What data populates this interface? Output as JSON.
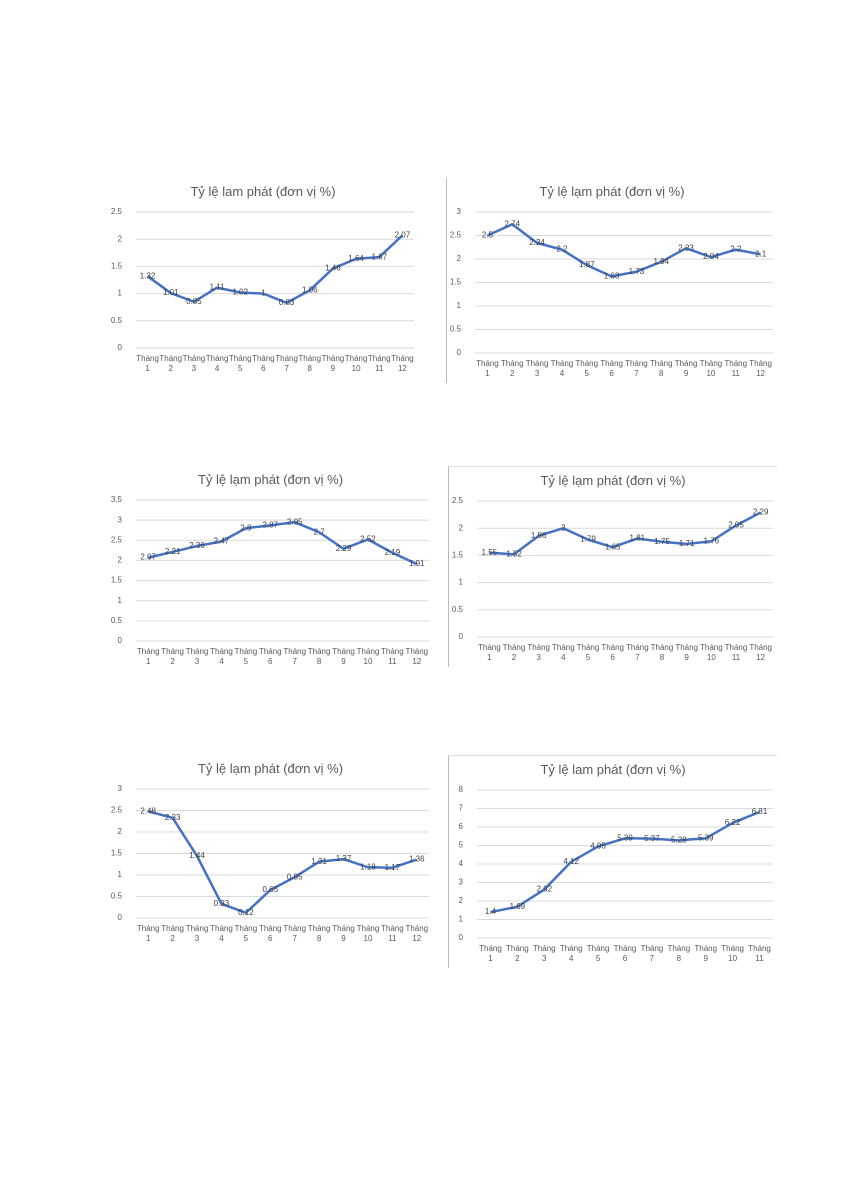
{
  "chart_data": [
    {
      "type": "line",
      "title": "Tỷ lệ lam phát (đơn vị %)",
      "categories": [
        "Tháng 1",
        "Tháng 2",
        "Tháng 3",
        "Tháng 4",
        "Tháng 5",
        "Tháng 6",
        "Tháng 7",
        "Tháng 8",
        "Tháng 9",
        "Tháng 10",
        "Tháng 11",
        "Tháng 12"
      ],
      "series": [
        {
          "color": "#4472c4",
          "values": [
            1.32,
            1.01,
            0.85,
            1.11,
            1.02,
            1,
            0.83,
            1.06,
            1.46,
            1.64,
            1.67,
            2.07
          ]
        }
      ],
      "ylim": [
        0,
        2.5
      ],
      "yticks": [
        0,
        0.5,
        1,
        1.5,
        2,
        2.5
      ],
      "grid": true
    },
    {
      "type": "line",
      "title": "Tỷ lệ lạm phát (đơn vị %)",
      "categories": [
        "Tháng 1",
        "Tháng 2",
        "Tháng 3",
        "Tháng 4",
        "Tháng 5",
        "Tháng 6",
        "Tháng 7",
        "Tháng 8",
        "Tháng 9",
        "Tháng 10",
        "Tháng 11",
        "Tháng 12"
      ],
      "series": [
        {
          "color": "#4472c4",
          "values": [
            2.5,
            2.74,
            2.34,
            2.2,
            1.87,
            1.63,
            1.73,
            1.94,
            2.23,
            2.04,
            2.2,
            2.1
          ]
        }
      ],
      "ylim": [
        0,
        3
      ],
      "yticks": [
        0,
        0.5,
        1,
        1.5,
        2,
        2.5,
        3
      ],
      "grid": true
    },
    {
      "type": "line",
      "title": "Tỷ lệ lạm phát (đơn vị %)",
      "categories": [
        "Tháng 1",
        "Tháng 2",
        "Tháng 3",
        "Tháng 4",
        "Tháng 5",
        "Tháng 6",
        "Tháng 7",
        "Tháng 8",
        "Tháng 9",
        "Tháng 10",
        "Tháng 11",
        "Tháng 12"
      ],
      "series": [
        {
          "color": "#4472c4",
          "values": [
            2.07,
            2.21,
            2.36,
            2.47,
            2.8,
            2.87,
            2.95,
            2.7,
            2.29,
            2.52,
            2.19,
            1.91
          ]
        }
      ],
      "ylim": [
        0,
        3.5
      ],
      "yticks": [
        0,
        0.5,
        1,
        1.5,
        2,
        2.5,
        3,
        3.5
      ],
      "grid": true
    },
    {
      "type": "line",
      "title": "Tỷ lệ lạm phát (đơn vị %)",
      "categories": [
        "Tháng 1",
        "Tháng 2",
        "Tháng 3",
        "Tháng 4",
        "Tháng 5",
        "Tháng 6",
        "Tháng 7",
        "Tháng 8",
        "Tháng 9",
        "Tháng 10",
        "Tháng 11",
        "Tháng 12"
      ],
      "series": [
        {
          "color": "#4472c4",
          "values": [
            1.55,
            1.52,
            1.86,
            2,
            1.79,
            1.65,
            1.81,
            1.75,
            1.71,
            1.76,
            2.05,
            2.29
          ]
        }
      ],
      "ylim": [
        0,
        2.5
      ],
      "yticks": [
        0,
        0.5,
        1,
        1.5,
        2,
        2.5
      ],
      "grid": true
    },
    {
      "type": "line",
      "title": "Tỷ lệ lạm phát (đơn vị %)",
      "categories": [
        "Tháng 1",
        "Tháng 2",
        "Tháng 3",
        "Tháng 4",
        "Tháng 5",
        "Tháng 6",
        "Tháng 7",
        "Tháng 8",
        "Tháng 9",
        "Tháng 10",
        "Tháng 11",
        "Tháng 12"
      ],
      "series": [
        {
          "color": "#4472c4",
          "values": [
            2.48,
            2.33,
            1.44,
            0.33,
            0.12,
            0.65,
            0.95,
            1.31,
            1.37,
            1.18,
            1.17,
            1.36
          ]
        }
      ],
      "ylim": [
        0,
        3
      ],
      "yticks": [
        0,
        0.5,
        1,
        1.5,
        2,
        2.5,
        3
      ],
      "grid": true
    },
    {
      "type": "line",
      "title": "Tỷ lệ lam phát (đơn vị %)",
      "categories": [
        "Tháng 1",
        "Tháng 2",
        "Tháng 3",
        "Tháng 4",
        "Tháng 5",
        "Tháng 6",
        "Tháng 7",
        "Tháng 8",
        "Tháng 9",
        "Tháng 10",
        "Tháng 11"
      ],
      "series": [
        {
          "color": "#4472c4",
          "values": [
            1.4,
            1.69,
            2.62,
            4.12,
            4.95,
            5.39,
            5.37,
            5.28,
            5.39,
            6.22,
            6.81
          ]
        }
      ],
      "ylim": [
        0,
        8
      ],
      "yticks": [
        0,
        1,
        2,
        3,
        4,
        5,
        6,
        7,
        8
      ],
      "grid": true
    }
  ]
}
